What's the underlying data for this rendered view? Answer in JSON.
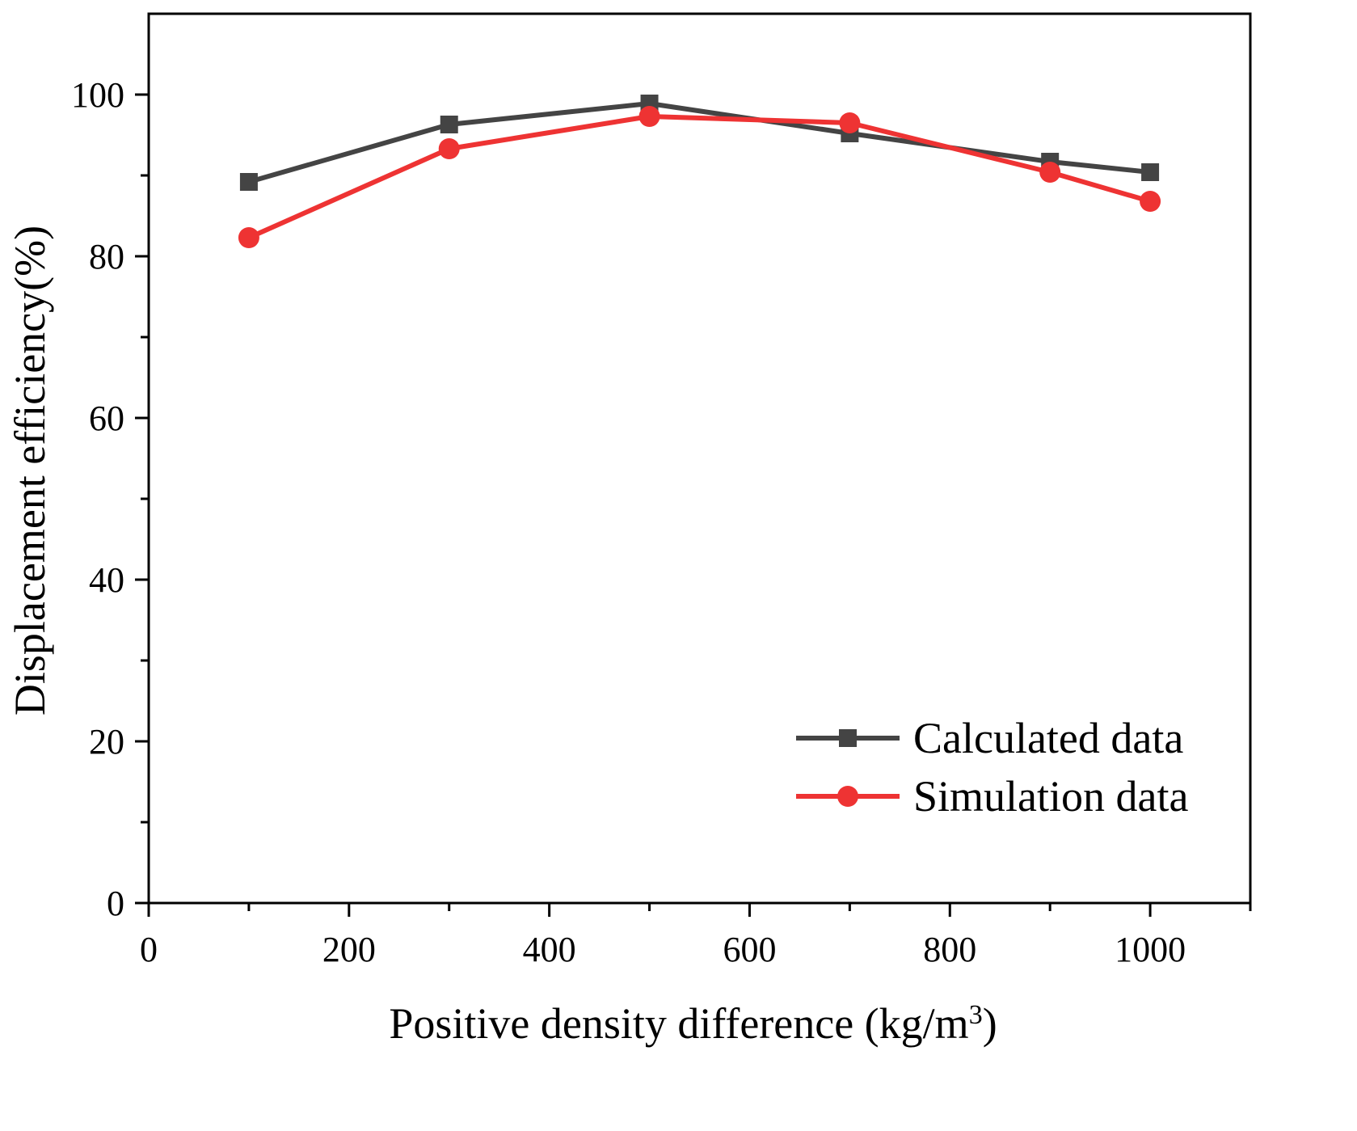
{
  "chart_data": {
    "type": "line",
    "title": "",
    "xlabel_main": "Positive density difference (kg/m",
    "xlabel_sup": "3",
    "xlabel_close": ")",
    "ylabel": "Displacement efficiency(%)",
    "xlim": [
      0,
      1100
    ],
    "ylim": [
      0,
      110
    ],
    "x_ticks": [
      0,
      200,
      400,
      600,
      800,
      1000
    ],
    "x_minor_ticks": [
      100,
      300,
      500,
      700,
      900,
      1100
    ],
    "y_ticks": [
      0,
      20,
      40,
      60,
      80,
      100
    ],
    "y_minor_ticks": [
      10,
      30,
      50,
      70,
      90
    ],
    "grid": false,
    "legend_position": "bottom-right",
    "x": [
      100,
      300,
      500,
      700,
      900,
      1000
    ],
    "series": [
      {
        "name": "Calculated data",
        "color": "#444444",
        "marker": "square",
        "values": [
          89.2,
          96.3,
          98.9,
          95.2,
          91.7,
          90.4
        ]
      },
      {
        "name": "Simulation data",
        "color": "#ee3333",
        "marker": "circle",
        "values": [
          82.3,
          93.3,
          97.3,
          96.5,
          90.4,
          86.8
        ]
      }
    ]
  }
}
